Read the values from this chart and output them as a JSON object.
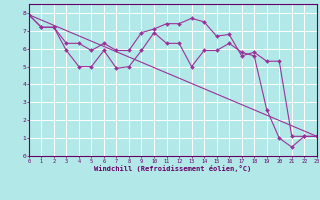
{
  "xlabel": "Windchill (Refroidissement éolien,°C)",
  "line_color": "#993399",
  "background_color": "#b3e8e8",
  "grid_color": "#ffffff",
  "xlim": [
    0,
    23
  ],
  "ylim": [
    0,
    8.5
  ],
  "x_ticks": [
    0,
    1,
    2,
    3,
    4,
    5,
    6,
    7,
    8,
    9,
    10,
    11,
    12,
    13,
    14,
    15,
    16,
    17,
    18,
    19,
    20,
    21,
    22,
    23
  ],
  "y_ticks": [
    0,
    1,
    2,
    3,
    4,
    5,
    6,
    7,
    8
  ],
  "line1_x": [
    0,
    1,
    2,
    3,
    4,
    5,
    6,
    7,
    8,
    9,
    10,
    11,
    12,
    13,
    14,
    15,
    16,
    17,
    18,
    19,
    20,
    21,
    22,
    23
  ],
  "line1_y": [
    7.9,
    7.2,
    7.2,
    6.3,
    6.3,
    5.9,
    6.3,
    5.9,
    5.9,
    6.9,
    7.1,
    7.4,
    7.4,
    7.7,
    7.5,
    6.7,
    6.8,
    5.6,
    5.8,
    5.3,
    5.3,
    1.1,
    1.1,
    1.1
  ],
  "line2_x": [
    0,
    1,
    2,
    3,
    4,
    5,
    6,
    7,
    8,
    9,
    10,
    11,
    12,
    13,
    14,
    15,
    16,
    17,
    18,
    19,
    20,
    21,
    22,
    23
  ],
  "line2_y": [
    7.9,
    7.2,
    7.2,
    5.9,
    5.0,
    5.0,
    5.9,
    4.9,
    5.0,
    5.9,
    6.9,
    6.3,
    6.3,
    5.0,
    5.9,
    5.9,
    6.3,
    5.8,
    5.6,
    2.6,
    1.0,
    0.5,
    1.1,
    1.1
  ],
  "line3_x": [
    0,
    23
  ],
  "line3_y": [
    7.9,
    1.1
  ]
}
